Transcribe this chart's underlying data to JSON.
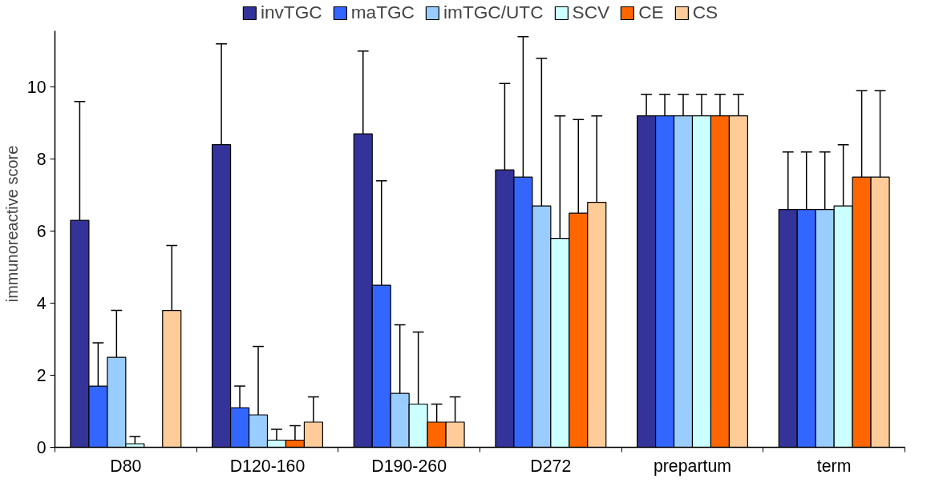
{
  "chart_data": {
    "type": "bar",
    "ylabel": "immunoreactive score",
    "categories": [
      "D80",
      "D120-160",
      "D190-260",
      "D272",
      "prepartum",
      "term"
    ],
    "series": [
      {
        "name": "invTGC",
        "color": "#333399",
        "values": [
          6.3,
          8.4,
          8.7,
          7.7,
          9.2,
          6.6
        ],
        "errors": [
          [
            6.3,
            9.6
          ],
          [
            8.4,
            11.2
          ],
          [
            8.7,
            11.0
          ],
          [
            7.7,
            10.1
          ],
          [
            9.2,
            9.8
          ],
          [
            6.6,
            8.2
          ]
        ]
      },
      {
        "name": "maTGC",
        "color": "#3366ff",
        "values": [
          1.7,
          1.1,
          4.5,
          7.5,
          9.2,
          6.6
        ],
        "errors": [
          [
            1.7,
            2.9
          ],
          [
            1.1,
            1.7
          ],
          [
            4.5,
            7.4
          ],
          [
            7.5,
            11.4
          ],
          [
            9.2,
            9.8
          ],
          [
            6.6,
            8.2
          ]
        ]
      },
      {
        "name": "imTGC/UTC",
        "color": "#99ccff",
        "values": [
          2.5,
          0.9,
          1.5,
          6.7,
          9.2,
          6.6
        ],
        "errors": [
          [
            2.5,
            3.8
          ],
          [
            0.9,
            2.8
          ],
          [
            1.5,
            3.4
          ],
          [
            6.7,
            10.8
          ],
          [
            9.2,
            9.8
          ],
          [
            6.6,
            8.2
          ]
        ]
      },
      {
        "name": "SCV",
        "color": "#ccffff",
        "values": [
          0.1,
          0.2,
          1.2,
          5.8,
          9.2,
          6.7
        ],
        "errors": [
          [
            0.1,
            0.3
          ],
          [
            0.2,
            0.5
          ],
          [
            1.2,
            3.2
          ],
          [
            5.8,
            9.2
          ],
          [
            9.2,
            9.8
          ],
          [
            6.7,
            8.4
          ]
        ]
      },
      {
        "name": "CE",
        "color": "#ff6600",
        "values": [
          null,
          0.2,
          0.7,
          6.5,
          9.2,
          7.5
        ],
        "errors": [
          null,
          [
            0.2,
            0.6
          ],
          [
            0.7,
            1.2
          ],
          [
            6.5,
            9.1
          ],
          [
            9.2,
            9.8
          ],
          [
            7.5,
            9.9
          ]
        ]
      },
      {
        "name": "CS",
        "color": "#ffcc99",
        "values": [
          3.8,
          0.7,
          0.7,
          6.8,
          9.2,
          7.5
        ],
        "errors": [
          [
            3.8,
            5.6
          ],
          [
            0.7,
            1.4
          ],
          [
            0.7,
            1.4
          ],
          [
            6.8,
            9.2
          ],
          [
            9.2,
            9.8
          ],
          [
            7.5,
            9.9
          ]
        ]
      }
    ],
    "ylim": [
      0,
      11.56
    ],
    "yticks": [
      0,
      2,
      4,
      6,
      8,
      10
    ],
    "grid": false,
    "legend": "top"
  }
}
